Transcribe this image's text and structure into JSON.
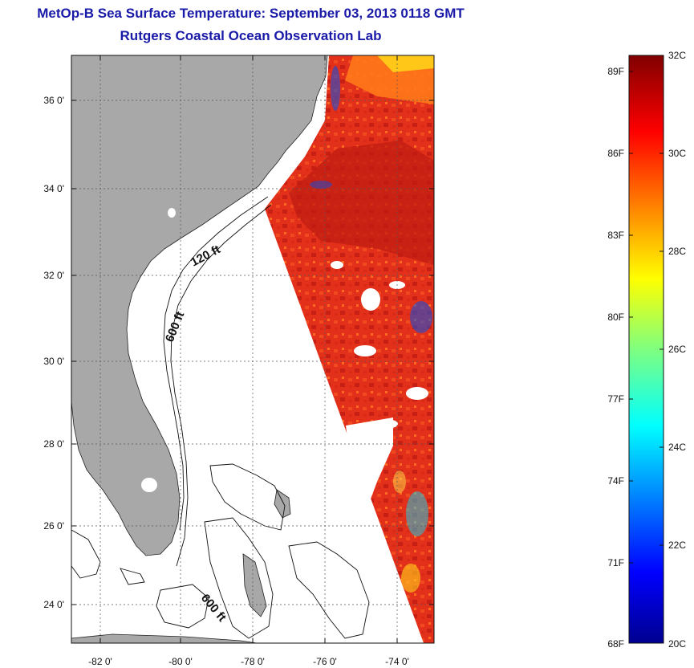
{
  "header": {
    "title": "MetOp-B Sea Surface Temperature:  September 03, 2013 0118 GMT",
    "subtitle": "Rutgers Coastal Ocean Observation Lab"
  },
  "map": {
    "region": "US Southeast coast / Florida / Bahamas",
    "lon_range": [
      -83,
      -73
    ],
    "lat_range": [
      23,
      37.1
    ],
    "lon_ticks": [
      "-82 0'",
      "-80 0'",
      "-78 0'",
      "-76 0'",
      "-74 0'"
    ],
    "lat_ticks": [
      "36 0'",
      "34 0'",
      "32 0'",
      "30 0'",
      "28 0'",
      "26 0'",
      "24 0'"
    ],
    "isobath_labels": [
      "120 ft",
      "600 ft",
      "600 ft"
    ],
    "colors": {
      "land": "#a8a8a8",
      "water_no_data": "#ffffff",
      "grid": "#555555"
    }
  },
  "colorbar": {
    "min_c": 20,
    "max_c": 32,
    "celsius_labels": [
      "32C",
      "30C",
      "28C",
      "26C",
      "24C",
      "22C",
      "20C"
    ],
    "fahrenheit_labels": [
      "89F",
      "86F",
      "83F",
      "80F",
      "77F",
      "74F",
      "71F",
      "68F"
    ],
    "colormap": "jet"
  }
}
